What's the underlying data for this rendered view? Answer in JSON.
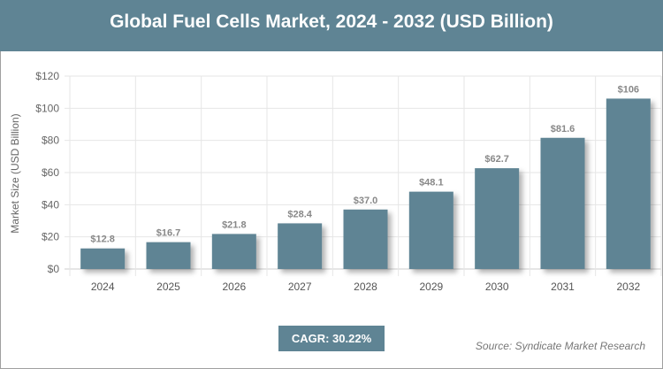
{
  "title": "Global Fuel Cells Market, 2024 - 2032 (USD Billion)",
  "cagr": "CAGR: 30.22%",
  "source": "Source: Syndicate Market Research",
  "colors": {
    "bar": "#5f8494",
    "header": "#5f8494"
  },
  "chart_data": {
    "type": "bar",
    "title": "Global Fuel Cells Market, 2024 - 2032 (USD Billion)",
    "xlabel": "",
    "ylabel": "Market Size (USD Billion)",
    "ylim": [
      0,
      120
    ],
    "yticks": [
      "$0",
      "$20",
      "$40",
      "$60",
      "$80",
      "$100",
      "$120"
    ],
    "categories": [
      "2024",
      "2025",
      "2026",
      "2027",
      "2028",
      "2029",
      "2030",
      "2031",
      "2032"
    ],
    "values": [
      12.8,
      16.7,
      21.8,
      28.4,
      37.0,
      48.1,
      62.7,
      81.6,
      106
    ],
    "data_labels": [
      "$12.8",
      "$16.7",
      "$21.8",
      "$28.4",
      "$37.0",
      "$48.1",
      "$62.7",
      "$81.6",
      "$106"
    ],
    "grid": true
  }
}
